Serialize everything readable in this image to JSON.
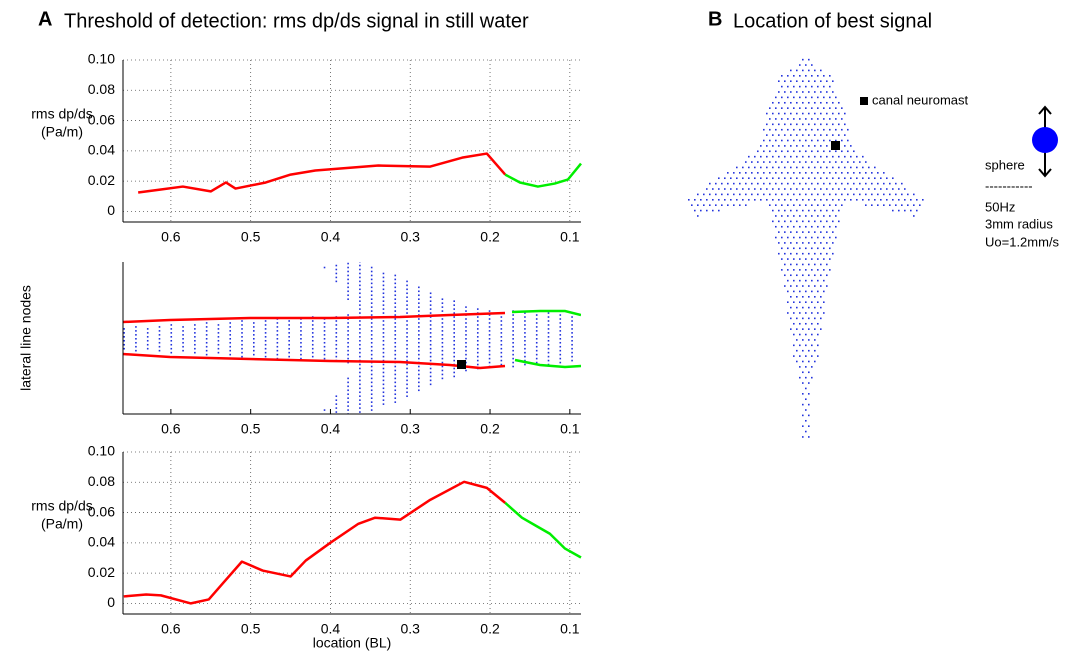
{
  "panel_a": {
    "letter": "A",
    "title": "Threshold of detection: rms dp/ds signal in still water"
  },
  "panel_b": {
    "letter": "B",
    "title": "Location of best signal",
    "marker_label": "canal neuromast",
    "stimulus": [
      "sphere",
      "-----------",
      "50Hz",
      "3mm radius",
      "Uo=1.2mm/s"
    ]
  },
  "chart_data": [
    {
      "type": "line",
      "ylabel": [
        "rms dp/ds",
        "(Pa/m)"
      ],
      "grid": true,
      "xlim": [
        0.66,
        0.086
      ],
      "xticks": [
        0.6,
        0.5,
        0.4,
        0.3,
        0.2,
        0.1
      ],
      "ylim": [
        -0.007,
        0.1
      ],
      "yticks": [
        0,
        0.02,
        0.04,
        0.06,
        0.08,
        {
          "value": 0.1,
          "label": "0.10"
        }
      ],
      "series": [
        {
          "color": "#ff0000",
          "x": [
            0.641,
            0.6125,
            0.585,
            0.55,
            0.531,
            0.519,
            0.481,
            0.45,
            0.419,
            0.3875,
            0.34,
            0.275,
            0.235,
            0.204,
            0.181
          ],
          "values": [
            0.0125,
            0.0145,
            0.0164,
            0.0132,
            0.0191,
            0.0151,
            0.0191,
            0.0243,
            0.027,
            0.0283,
            0.0303,
            0.0296,
            0.0355,
            0.0382,
            0.0243
          ]
        },
        {
          "color": "#00ee00",
          "x": [
            0.181,
            0.1625,
            0.14,
            0.119,
            0.1025,
            0.086
          ],
          "values": [
            0.0243,
            0.0191,
            0.0164,
            0.0184,
            0.021,
            0.0316
          ]
        }
      ]
    },
    {
      "type": "nodes",
      "ylabel": "lateral line nodes",
      "grid": false,
      "xlim": [
        0.66,
        0.086
      ],
      "xticks": [
        0.6,
        0.5,
        0.4,
        0.3,
        0.2,
        0.1
      ]
    },
    {
      "type": "line",
      "ylabel": [
        "rms dp/ds",
        "(Pa/m)"
      ],
      "xlabel": "location (BL)",
      "grid": true,
      "xlim": [
        0.66,
        0.086
      ],
      "xticks": [
        0.6,
        0.5,
        0.4,
        0.3,
        0.2,
        0.1
      ],
      "ylim": [
        -0.007,
        0.1
      ],
      "yticks": [
        0,
        0.02,
        0.04,
        0.06,
        0.08,
        {
          "value": 0.1,
          "label": "0.10"
        }
      ],
      "series": [
        {
          "color": "#ff0000",
          "x": [
            0.659,
            0.631,
            0.6125,
            0.575,
            0.5525,
            0.535,
            0.511,
            0.485,
            0.45,
            0.431,
            0.4,
            0.365,
            0.344,
            0.3125,
            0.275,
            0.2325,
            0.204,
            0.181
          ],
          "values": [
            0.0046,
            0.0059,
            0.0053,
            0,
            0.0026,
            0.0132,
            0.0276,
            0.0217,
            0.0178,
            0.0283,
            0.0401,
            0.0526,
            0.0566,
            0.0553,
            0.0684,
            0.0803,
            0.0763,
            0.0664
          ]
        },
        {
          "color": "#00ee00",
          "x": [
            0.181,
            0.16,
            0.1425,
            0.125,
            0.106,
            0.086
          ],
          "values": [
            0.0664,
            0.0566,
            0.0513,
            0.046,
            0.0362,
            0.0303
          ]
        }
      ]
    }
  ]
}
